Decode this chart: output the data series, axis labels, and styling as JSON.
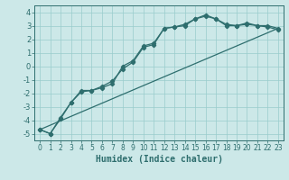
{
  "xlabel": "Humidex (Indice chaleur)",
  "xlim": [
    -0.5,
    23.5
  ],
  "ylim": [
    -5.5,
    4.5
  ],
  "xticks": [
    0,
    1,
    2,
    3,
    4,
    5,
    6,
    7,
    8,
    9,
    10,
    11,
    12,
    13,
    14,
    15,
    16,
    17,
    18,
    19,
    20,
    21,
    22,
    23
  ],
  "yticks": [
    -5,
    -4,
    -3,
    -2,
    -1,
    0,
    1,
    2,
    3,
    4
  ],
  "bg_color": "#cce8e8",
  "line_color": "#2e6e6e",
  "grid_color": "#99cccc",
  "line1_x": [
    0,
    23
  ],
  "line1_y": [
    -4.7,
    2.8
  ],
  "line2_x": [
    0,
    1,
    2,
    3,
    4,
    5,
    6,
    7,
    8,
    9,
    10,
    11,
    12,
    13,
    14,
    15,
    16,
    17,
    18,
    19,
    20,
    21,
    22,
    23
  ],
  "line2_y": [
    -4.7,
    -5.0,
    -3.8,
    -2.7,
    -1.8,
    -1.8,
    -1.5,
    -1.1,
    -0.2,
    0.3,
    1.4,
    1.6,
    2.8,
    2.9,
    3.1,
    3.5,
    3.8,
    3.5,
    3.1,
    3.0,
    3.2,
    3.0,
    3.0,
    2.8
  ],
  "line3_x": [
    0,
    1,
    2,
    3,
    4,
    5,
    6,
    7,
    8,
    9,
    10,
    11,
    12,
    13,
    14,
    15,
    16,
    17,
    18,
    19,
    20,
    21,
    22,
    23
  ],
  "line3_y": [
    -4.7,
    -5.0,
    -3.9,
    -2.7,
    -1.9,
    -1.8,
    -1.6,
    -1.3,
    0.0,
    0.4,
    1.5,
    1.7,
    2.8,
    2.9,
    3.0,
    3.5,
    3.7,
    3.5,
    3.0,
    3.0,
    3.1,
    3.0,
    2.9,
    2.7
  ]
}
